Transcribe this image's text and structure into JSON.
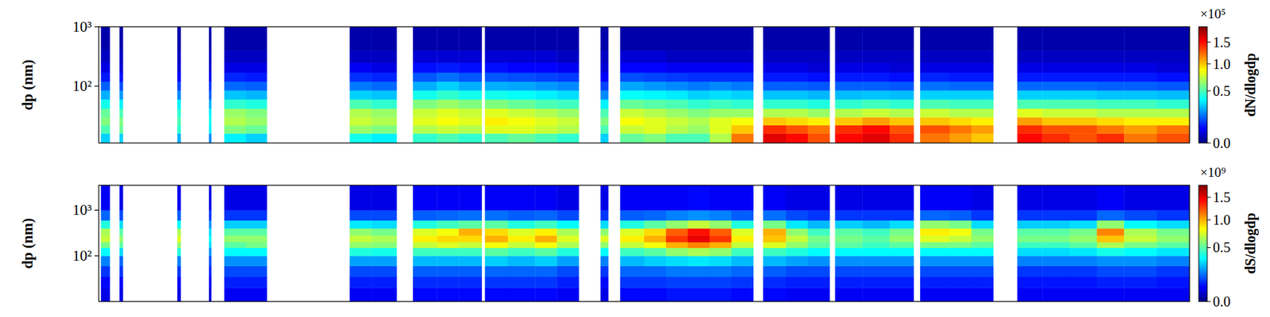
{
  "chart_data": [
    {
      "type": "heatmap",
      "y_label": "dp (nm)",
      "log": "y",
      "tick_labels": "y",
      "xlim": [
        0,
        100
      ],
      "ylim": [
        11,
        1000
      ],
      "yticks": [
        {
          "value": 100,
          "label": "10²"
        },
        {
          "value": 1000,
          "label": "10³"
        }
      ],
      "x_bins": [
        0.2,
        1.0,
        1.9,
        2.2,
        7.2,
        7.5,
        10.1,
        10.3,
        11.5,
        13.5,
        15.4,
        23.0,
        25.0,
        27.3,
        28.8,
        31,
        33,
        35.1,
        35.4,
        37.5,
        40,
        42,
        44,
        46.0,
        46.7,
        47.8,
        50,
        52,
        54,
        56,
        58,
        60.0,
        60.9,
        63,
        65,
        67.0,
        67.5,
        70,
        72.5,
        74.7,
        75.3,
        78,
        80,
        82,
        84.2,
        86.5,
        89,
        91.5,
        94,
        97,
        100
      ],
      "y_bins": [
        11,
        16,
        22,
        30,
        42,
        60,
        85,
        120,
        170,
        250,
        400,
        1000
      ],
      "cells": [
        [
          0.3,
          0.5,
          0.6,
          0.55,
          0.4,
          0.25,
          0.15,
          0.08,
          0.04,
          0.02,
          0.01
        ],
        null,
        [
          0.3,
          0.55,
          0.6,
          0.5,
          0.35,
          0.22,
          0.13,
          0.07,
          0.03,
          0.02,
          0.01
        ],
        null,
        [
          0.25,
          0.45,
          0.5,
          0.45,
          0.35,
          0.2,
          0.12,
          0.06,
          0.03,
          0.02,
          0.01
        ],
        null,
        [
          0.2,
          0.35,
          0.4,
          0.35,
          0.25,
          0.15,
          0.1,
          0.05,
          0.03,
          0.02,
          0.01
        ],
        null,
        [
          0.35,
          0.6,
          0.7,
          0.65,
          0.45,
          0.28,
          0.16,
          0.09,
          0.04,
          0.02,
          0.01
        ],
        [
          0.3,
          0.55,
          0.65,
          0.6,
          0.42,
          0.26,
          0.15,
          0.08,
          0.04,
          0.02,
          0.01
        ],
        null,
        [
          0.4,
          0.65,
          0.75,
          0.7,
          0.5,
          0.3,
          0.18,
          0.1,
          0.05,
          0.02,
          0.01
        ],
        [
          0.35,
          0.6,
          0.7,
          0.65,
          0.45,
          0.28,
          0.16,
          0.09,
          0.04,
          0.02,
          0.01
        ],
        null,
        [
          0.45,
          0.7,
          0.8,
          0.75,
          0.6,
          0.4,
          0.25,
          0.14,
          0.07,
          0.03,
          0.01
        ],
        [
          0.5,
          0.75,
          0.85,
          0.8,
          0.65,
          0.45,
          0.3,
          0.17,
          0.08,
          0.03,
          0.01
        ],
        [
          0.45,
          0.7,
          0.8,
          0.75,
          0.6,
          0.4,
          0.25,
          0.14,
          0.07,
          0.03,
          0.01
        ],
        null,
        [
          0.5,
          0.8,
          0.9,
          0.8,
          0.6,
          0.4,
          0.25,
          0.14,
          0.07,
          0.03,
          0.01
        ],
        [
          0.55,
          0.8,
          0.85,
          0.75,
          0.55,
          0.38,
          0.24,
          0.13,
          0.06,
          0.03,
          0.01
        ],
        [
          0.5,
          0.75,
          0.8,
          0.7,
          0.5,
          0.35,
          0.22,
          0.12,
          0.06,
          0.03,
          0.01
        ],
        [
          0.45,
          0.7,
          0.75,
          0.65,
          0.48,
          0.32,
          0.2,
          0.11,
          0.05,
          0.02,
          0.01
        ],
        null,
        [
          0.3,
          0.5,
          0.6,
          0.5,
          0.35,
          0.2,
          0.12,
          0.06,
          0.03,
          0.02,
          0.01
        ],
        null,
        [
          0.55,
          0.75,
          0.85,
          0.75,
          0.55,
          0.38,
          0.24,
          0.13,
          0.06,
          0.03,
          0.01
        ],
        [
          0.6,
          0.8,
          0.8,
          0.7,
          0.52,
          0.36,
          0.22,
          0.12,
          0.06,
          0.03,
          0.01
        ],
        [
          0.5,
          0.7,
          0.75,
          0.65,
          0.5,
          0.34,
          0.2,
          0.11,
          0.05,
          0.02,
          0.01
        ],
        [
          0.5,
          0.65,
          0.7,
          0.6,
          0.45,
          0.3,
          0.18,
          0.1,
          0.05,
          0.02,
          0.01
        ],
        [
          0.7,
          0.8,
          0.8,
          0.65,
          0.48,
          0.32,
          0.2,
          0.1,
          0.05,
          0.02,
          0.01
        ],
        [
          1.2,
          1.0,
          0.85,
          0.65,
          0.45,
          0.3,
          0.18,
          0.1,
          0.05,
          0.02,
          0.01
        ],
        null,
        [
          1.6,
          1.4,
          1.0,
          0.7,
          0.45,
          0.28,
          0.15,
          0.08,
          0.04,
          0.02,
          0.01
        ],
        [
          1.5,
          1.3,
          0.95,
          0.7,
          0.45,
          0.28,
          0.15,
          0.08,
          0.04,
          0.02,
          0.01
        ],
        [
          1.3,
          1.2,
          0.9,
          0.65,
          0.42,
          0.26,
          0.14,
          0.07,
          0.03,
          0.02,
          0.01
        ],
        null,
        [
          1.5,
          1.4,
          1.0,
          0.7,
          0.45,
          0.27,
          0.15,
          0.08,
          0.04,
          0.02,
          0.01
        ],
        [
          1.6,
          1.5,
          1.1,
          0.75,
          0.48,
          0.28,
          0.15,
          0.08,
          0.04,
          0.02,
          0.01
        ],
        [
          1.4,
          1.3,
          1.0,
          0.7,
          0.45,
          0.27,
          0.14,
          0.07,
          0.03,
          0.02,
          0.01
        ],
        null,
        [
          1.2,
          1.3,
          1.0,
          0.75,
          0.5,
          0.3,
          0.17,
          0.09,
          0.04,
          0.02,
          0.01
        ],
        [
          1.1,
          1.2,
          0.95,
          0.7,
          0.48,
          0.3,
          0.16,
          0.08,
          0.04,
          0.02,
          0.01
        ],
        [
          1.0,
          1.1,
          0.9,
          0.7,
          0.48,
          0.3,
          0.16,
          0.08,
          0.04,
          0.02,
          0.01
        ],
        null,
        [
          1.5,
          1.4,
          1.1,
          0.8,
          0.5,
          0.3,
          0.16,
          0.08,
          0.04,
          0.02,
          0.01
        ],
        [
          1.4,
          1.3,
          1.0,
          0.75,
          0.5,
          0.3,
          0.16,
          0.08,
          0.04,
          0.02,
          0.01
        ],
        [
          1.3,
          1.3,
          1.0,
          0.75,
          0.5,
          0.3,
          0.16,
          0.08,
          0.04,
          0.02,
          0.01
        ],
        [
          1.4,
          1.2,
          0.95,
          0.7,
          0.48,
          0.28,
          0.15,
          0.08,
          0.04,
          0.02,
          0.01
        ],
        [
          1.2,
          1.1,
          0.9,
          0.7,
          0.48,
          0.28,
          0.15,
          0.08,
          0.04,
          0.02,
          0.01
        ],
        [
          1.3,
          1.2,
          0.9,
          0.7,
          0.45,
          0.27,
          0.14,
          0.07,
          0.03,
          0.02,
          0.01
        ]
      ],
      "colorbar": {
        "label": "dN/dlogdp",
        "exponent_label": "×10⁵",
        "range": [
          0,
          1.9
        ],
        "ticks": [
          {
            "value": 0,
            "label": "0.0"
          },
          {
            "value": 0.5,
            "label": "0.5"
          },
          {
            "value": 1,
            "label": "1.0"
          },
          {
            "value": 1.5,
            "label": "1.5"
          }
        ]
      }
    },
    {
      "type": "heatmap",
      "y_label": "dp (nm)",
      "log": "y",
      "tick_labels": "y",
      "xlim": [
        0,
        100
      ],
      "ylim": [
        10,
        3500
      ],
      "yticks": [
        {
          "value": 100,
          "label": "10²"
        },
        {
          "value": 1000,
          "label": "10³"
        }
      ],
      "x_bins": [
        0.2,
        1.0,
        1.9,
        2.2,
        7.2,
        7.5,
        10.1,
        10.3,
        11.5,
        13.5,
        15.4,
        23.0,
        25.0,
        27.3,
        28.8,
        31,
        33,
        35.1,
        35.4,
        37.5,
        40,
        42,
        44,
        46.0,
        46.7,
        47.8,
        50,
        52,
        54,
        56,
        58,
        60.0,
        60.9,
        63,
        65,
        67.0,
        67.5,
        70,
        72.5,
        74.7,
        75.3,
        78,
        80,
        82,
        84.2,
        86.5,
        89,
        91.5,
        94,
        97,
        100
      ],
      "y_bins": [
        10,
        20,
        35,
        60,
        100,
        150,
        200,
        280,
        400,
        600,
        1000,
        3500
      ],
      "cells": [
        [
          0.04,
          0.06,
          0.1,
          0.18,
          0.35,
          0.55,
          0.7,
          0.65,
          0.4,
          0.15,
          0.05
        ],
        null,
        [
          0.04,
          0.06,
          0.1,
          0.15,
          0.3,
          0.5,
          0.6,
          0.5,
          0.3,
          0.12,
          0.04
        ],
        null,
        [
          0.04,
          0.06,
          0.1,
          0.18,
          0.4,
          0.6,
          0.75,
          0.65,
          0.35,
          0.14,
          0.05
        ],
        null,
        [
          0.03,
          0.05,
          0.08,
          0.12,
          0.2,
          0.3,
          0.35,
          0.3,
          0.2,
          0.1,
          0.04
        ],
        null,
        [
          0.05,
          0.08,
          0.12,
          0.2,
          0.35,
          0.5,
          0.6,
          0.5,
          0.28,
          0.1,
          0.04
        ],
        [
          0.05,
          0.08,
          0.12,
          0.2,
          0.35,
          0.55,
          0.6,
          0.5,
          0.28,
          0.1,
          0.04
        ],
        null,
        [
          0.05,
          0.08,
          0.12,
          0.22,
          0.4,
          0.6,
          0.7,
          0.6,
          0.32,
          0.12,
          0.04
        ],
        [
          0.05,
          0.08,
          0.12,
          0.22,
          0.38,
          0.58,
          0.65,
          0.55,
          0.3,
          0.12,
          0.04
        ],
        null,
        [
          0.06,
          0.09,
          0.14,
          0.25,
          0.45,
          0.7,
          0.85,
          0.75,
          0.4,
          0.14,
          0.05
        ],
        [
          0.06,
          0.09,
          0.14,
          0.25,
          0.45,
          0.75,
          0.9,
          0.8,
          0.45,
          0.15,
          0.05
        ],
        [
          0.06,
          0.09,
          0.14,
          0.25,
          0.45,
          0.7,
          0.9,
          1.0,
          0.5,
          0.16,
          0.05
        ],
        null,
        [
          0.06,
          0.1,
          0.15,
          0.28,
          0.5,
          0.8,
          1.0,
          0.9,
          0.5,
          0.16,
          0.05
        ],
        [
          0.06,
          0.1,
          0.15,
          0.25,
          0.45,
          0.7,
          0.85,
          0.75,
          0.4,
          0.14,
          0.05
        ],
        [
          0.06,
          0.1,
          0.15,
          0.28,
          0.5,
          0.8,
          1.0,
          0.85,
          0.45,
          0.15,
          0.05
        ],
        [
          0.05,
          0.08,
          0.12,
          0.22,
          0.4,
          0.65,
          0.75,
          0.65,
          0.35,
          0.12,
          0.04
        ],
        null,
        [
          0.04,
          0.06,
          0.1,
          0.18,
          0.35,
          0.6,
          0.75,
          0.6,
          0.3,
          0.1,
          0.04
        ],
        null,
        [
          0.06,
          0.1,
          0.15,
          0.25,
          0.45,
          0.7,
          0.85,
          0.75,
          0.4,
          0.14,
          0.05
        ],
        [
          0.06,
          0.1,
          0.15,
          0.28,
          0.5,
          0.8,
          1.0,
          0.9,
          0.5,
          0.15,
          0.05
        ],
        [
          0.07,
          0.11,
          0.17,
          0.3,
          0.6,
          1.0,
          1.3,
          1.2,
          0.6,
          0.18,
          0.05
        ],
        [
          0.07,
          0.11,
          0.17,
          0.32,
          0.65,
          1.1,
          1.5,
          1.4,
          0.7,
          0.2,
          0.06
        ],
        [
          0.07,
          0.11,
          0.17,
          0.3,
          0.6,
          1.0,
          1.3,
          1.2,
          0.6,
          0.18,
          0.05
        ],
        [
          0.06,
          0.1,
          0.15,
          0.25,
          0.45,
          0.7,
          0.85,
          0.75,
          0.4,
          0.14,
          0.05
        ],
        null,
        [
          0.06,
          0.09,
          0.14,
          0.25,
          0.45,
          0.75,
          0.95,
          1.0,
          0.55,
          0.16,
          0.05
        ],
        [
          0.05,
          0.08,
          0.12,
          0.22,
          0.4,
          0.6,
          0.7,
          0.6,
          0.32,
          0.12,
          0.04
        ],
        [
          0.05,
          0.08,
          0.12,
          0.2,
          0.35,
          0.5,
          0.55,
          0.45,
          0.25,
          0.1,
          0.04
        ],
        null,
        [
          0.05,
          0.08,
          0.12,
          0.2,
          0.35,
          0.5,
          0.55,
          0.5,
          0.28,
          0.1,
          0.04
        ],
        [
          0.05,
          0.08,
          0.12,
          0.2,
          0.35,
          0.45,
          0.5,
          0.45,
          0.25,
          0.1,
          0.04
        ],
        [
          0.05,
          0.08,
          0.12,
          0.2,
          0.35,
          0.5,
          0.6,
          0.55,
          0.3,
          0.1,
          0.04
        ],
        null,
        [
          0.05,
          0.08,
          0.12,
          0.2,
          0.35,
          0.55,
          0.75,
          0.85,
          0.6,
          0.15,
          0.05
        ],
        [
          0.05,
          0.08,
          0.12,
          0.2,
          0.35,
          0.55,
          0.7,
          0.8,
          0.55,
          0.14,
          0.05
        ],
        [
          0.05,
          0.08,
          0.12,
          0.2,
          0.35,
          0.5,
          0.6,
          0.55,
          0.3,
          0.1,
          0.04
        ],
        null,
        [
          0.05,
          0.07,
          0.1,
          0.18,
          0.3,
          0.45,
          0.55,
          0.5,
          0.28,
          0.1,
          0.04
        ],
        [
          0.05,
          0.07,
          0.1,
          0.18,
          0.3,
          0.45,
          0.55,
          0.5,
          0.28,
          0.1,
          0.04
        ],
        [
          0.05,
          0.07,
          0.1,
          0.18,
          0.32,
          0.5,
          0.6,
          0.55,
          0.3,
          0.1,
          0.04
        ],
        [
          0.05,
          0.08,
          0.12,
          0.2,
          0.38,
          0.65,
          0.95,
          1.1,
          0.6,
          0.15,
          0.05
        ],
        [
          0.05,
          0.08,
          0.12,
          0.2,
          0.35,
          0.55,
          0.7,
          0.65,
          0.35,
          0.12,
          0.04
        ],
        [
          0.05,
          0.07,
          0.1,
          0.18,
          0.32,
          0.5,
          0.6,
          0.55,
          0.3,
          0.1,
          0.04
        ]
      ],
      "colorbar": {
        "label": "dS/dlogdp",
        "exponent_label": "×10⁹",
        "range": [
          0,
          1.8
        ],
        "ticks": [
          {
            "value": 0,
            "label": "0.0"
          },
          {
            "value": 0.5,
            "label": "0.5"
          },
          {
            "value": 1,
            "label": "1.0"
          },
          {
            "value": 1.5,
            "label": "1.5"
          }
        ]
      }
    }
  ]
}
